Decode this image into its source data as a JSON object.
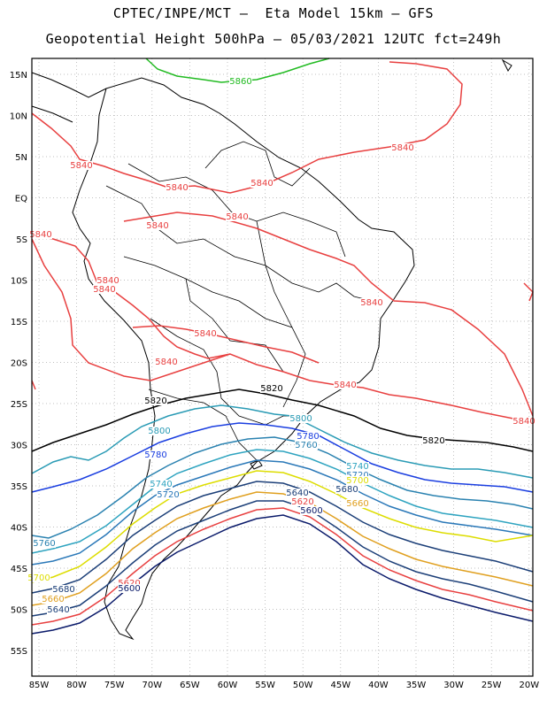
{
  "header": {
    "line1": "CPTEC/INPE/MCT –  Eta Model 15km – GFS",
    "line2": "Geopotential Height 500hPa – 05/03/2021 12UTC fct=249h"
  },
  "map": {
    "lon_ticks": [
      "85W",
      "80W",
      "75W",
      "70W",
      "65W",
      "60W",
      "55W",
      "50W",
      "45W",
      "40W",
      "35W",
      "30W",
      "25W",
      "20W"
    ],
    "lat_ticks": [
      "15N",
      "10N",
      "5N",
      "EQ",
      "5S",
      "10S",
      "15S",
      "20S",
      "25S",
      "30S",
      "35S",
      "40S",
      "45S",
      "50S",
      "55S"
    ],
    "contour_labels": [
      {
        "text": "5860",
        "color": "#22bb22"
      },
      {
        "text": "5840",
        "color": "#e84040"
      },
      {
        "text": "5840",
        "color": "#e84040"
      },
      {
        "text": "5840",
        "color": "#e84040"
      },
      {
        "text": "5840",
        "color": "#e84040"
      },
      {
        "text": "5840",
        "color": "#e84040"
      },
      {
        "text": "5840",
        "color": "#e84040"
      },
      {
        "text": "5840",
        "color": "#e84040"
      },
      {
        "text": "5840",
        "color": "#e84040"
      },
      {
        "text": "5840",
        "color": "#e84040"
      },
      {
        "text": "5840",
        "color": "#e84040"
      },
      {
        "text": "5840",
        "color": "#e84040"
      },
      {
        "text": "5840",
        "color": "#e84040"
      },
      {
        "text": "5840",
        "color": "#e84040"
      },
      {
        "text": "5840",
        "color": "#e84040"
      },
      {
        "text": "5820",
        "color": "#000000"
      },
      {
        "text": "5820",
        "color": "#000000"
      },
      {
        "text": "5820",
        "color": "#000000"
      },
      {
        "text": "5800",
        "color": "#2a9bb5"
      },
      {
        "text": "5800",
        "color": "#2a9bb5"
      },
      {
        "text": "5780",
        "color": "#1a3ee0"
      },
      {
        "text": "5780",
        "color": "#1a3ee0"
      },
      {
        "text": "5760",
        "color": "#2a82b0"
      },
      {
        "text": "5760",
        "color": "#2a82b0"
      },
      {
        "text": "5740",
        "color": "#2fa4c0"
      },
      {
        "text": "5740",
        "color": "#2fa4c0"
      },
      {
        "text": "5720",
        "color": "#2a78b8"
      },
      {
        "text": "5720",
        "color": "#2a78b8"
      },
      {
        "text": "5700",
        "color": "#dddd00"
      },
      {
        "text": "5700",
        "color": "#dddd00"
      },
      {
        "text": "5680",
        "color": "#1c3f78"
      },
      {
        "text": "5680",
        "color": "#1c3f78"
      },
      {
        "text": "5660",
        "color": "#e0a020"
      },
      {
        "text": "5660",
        "color": "#e0a020"
      },
      {
        "text": "5640",
        "color": "#1c3f78"
      },
      {
        "text": "5640",
        "color": "#1c3f78"
      },
      {
        "text": "5620",
        "color": "#e84040"
      },
      {
        "text": "5620",
        "color": "#e84040"
      },
      {
        "text": "5600",
        "color": "#0a1a6a"
      },
      {
        "text": "5600",
        "color": "#0a1a6a"
      }
    ]
  }
}
